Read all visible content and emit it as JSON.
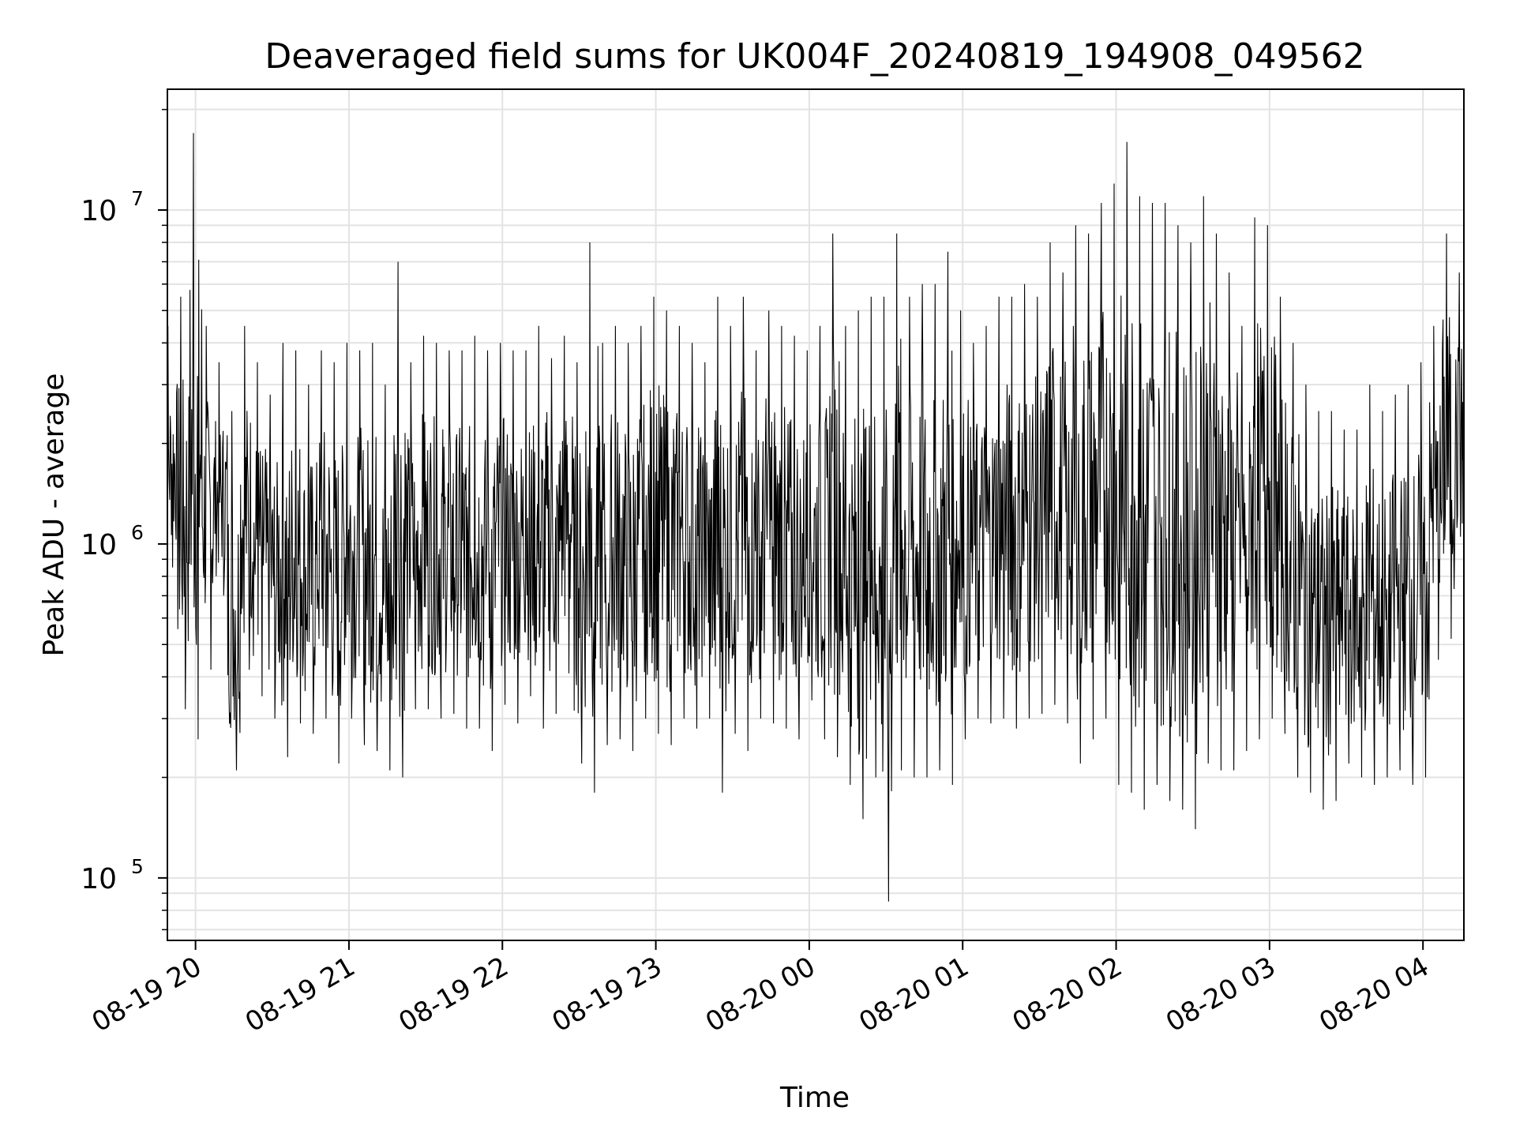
{
  "chart_data": {
    "type": "line",
    "title": "Deaveraged field sums for UK004F_20240819_194908_049562",
    "xlabel": "Time",
    "ylabel": "Peak ADU - average",
    "x_scale": "time",
    "y_scale": "log",
    "xlim": [
      "2024-08-19 19:49",
      "2024-08-20 04:16"
    ],
    "ylim": [
      65000,
      23000000
    ],
    "grid": true,
    "legend": "none",
    "line_color": "#000000",
    "x_ticks": [
      {
        "value": "2024-08-19 20:00",
        "label": "08-19 20"
      },
      {
        "value": "2024-08-19 21:00",
        "label": "08-19 21"
      },
      {
        "value": "2024-08-19 22:00",
        "label": "08-19 22"
      },
      {
        "value": "2024-08-19 23:00",
        "label": "08-19 23"
      },
      {
        "value": "2024-08-20 00:00",
        "label": "08-20 00"
      },
      {
        "value": "2024-08-20 01:00",
        "label": "08-20 01"
      },
      {
        "value": "2024-08-20 02:00",
        "label": "08-20 02"
      },
      {
        "value": "2024-08-20 03:00",
        "label": "08-20 03"
      },
      {
        "value": "2024-08-20 04:00",
        "label": "08-20 04"
      }
    ],
    "y_ticks": [
      {
        "value": 100000,
        "base": "10",
        "exp": "5"
      },
      {
        "value": 1000000,
        "base": "10",
        "exp": "6"
      },
      {
        "value": 10000000,
        "base": "10",
        "exp": "7"
      }
    ],
    "series": [
      {
        "x": [
          "2024-08-19 19:50",
          "2024-08-19 19:55",
          "2024-08-19 20:00",
          "2024-08-19 20:05",
          "2024-08-19 20:10",
          "2024-08-19 20:15",
          "2024-08-19 20:20",
          "2024-08-19 20:25",
          "2024-08-19 20:30",
          "2024-08-19 20:35",
          "2024-08-19 20:40",
          "2024-08-19 20:45",
          "2024-08-19 20:50",
          "2024-08-19 20:55",
          "2024-08-19 21:00",
          "2024-08-19 21:05",
          "2024-08-19 21:10",
          "2024-08-19 21:15",
          "2024-08-19 21:20",
          "2024-08-19 21:25",
          "2024-08-19 21:30",
          "2024-08-19 21:35",
          "2024-08-19 21:40",
          "2024-08-19 21:45",
          "2024-08-19 21:50",
          "2024-08-19 21:55",
          "2024-08-19 22:00",
          "2024-08-19 22:05",
          "2024-08-19 22:10",
          "2024-08-19 22:15",
          "2024-08-19 22:20",
          "2024-08-19 22:25",
          "2024-08-19 22:30",
          "2024-08-19 22:35",
          "2024-08-19 22:40",
          "2024-08-19 22:45",
          "2024-08-19 22:50",
          "2024-08-19 22:55",
          "2024-08-19 23:00",
          "2024-08-19 23:05",
          "2024-08-19 23:10",
          "2024-08-19 23:15",
          "2024-08-19 23:20",
          "2024-08-19 23:25",
          "2024-08-19 23:30",
          "2024-08-19 23:35",
          "2024-08-19 23:40",
          "2024-08-19 23:45",
          "2024-08-19 23:50",
          "2024-08-19 23:55",
          "2024-08-20 00:00",
          "2024-08-20 00:05",
          "2024-08-20 00:10",
          "2024-08-20 00:15",
          "2024-08-20 00:20",
          "2024-08-20 00:25",
          "2024-08-20 00:30",
          "2024-08-20 00:35",
          "2024-08-20 00:40",
          "2024-08-20 00:45",
          "2024-08-20 00:50",
          "2024-08-20 00:55",
          "2024-08-20 01:00",
          "2024-08-20 01:05",
          "2024-08-20 01:10",
          "2024-08-20 01:15",
          "2024-08-20 01:20",
          "2024-08-20 01:25",
          "2024-08-20 01:30",
          "2024-08-20 01:35",
          "2024-08-20 01:40",
          "2024-08-20 01:45",
          "2024-08-20 01:50",
          "2024-08-20 01:55",
          "2024-08-20 02:00",
          "2024-08-20 02:05",
          "2024-08-20 02:10",
          "2024-08-20 02:15",
          "2024-08-20 02:20",
          "2024-08-20 02:25",
          "2024-08-20 02:30",
          "2024-08-20 02:35",
          "2024-08-20 02:40",
          "2024-08-20 02:45",
          "2024-08-20 02:50",
          "2024-08-20 02:55",
          "2024-08-20 03:00",
          "2024-08-20 03:05",
          "2024-08-20 03:10",
          "2024-08-20 03:15",
          "2024-08-20 03:20",
          "2024-08-20 03:25",
          "2024-08-20 03:30",
          "2024-08-20 03:35",
          "2024-08-20 03:40",
          "2024-08-20 03:45",
          "2024-08-20 03:50",
          "2024-08-20 03:55",
          "2024-08-20 04:00",
          "2024-08-20 04:05",
          "2024-08-20 04:10",
          "2024-08-20 04:15"
        ],
        "y_high": [
          4500000,
          5500000,
          17000000,
          4500000,
          3500000,
          2500000,
          4500000,
          3500000,
          2800000,
          4000000,
          3800000,
          3000000,
          3800000,
          3500000,
          4000000,
          3800000,
          4000000,
          3000000,
          7000000,
          3500000,
          4200000,
          4000000,
          3800000,
          3800000,
          4200000,
          3800000,
          4000000,
          3800000,
          3800000,
          4500000,
          3600000,
          4200000,
          3500000,
          8000000,
          4000000,
          4500000,
          4000000,
          4500000,
          5500000,
          5000000,
          4500000,
          4000000,
          3500000,
          5500000,
          4500000,
          5500000,
          3800000,
          5000000,
          4500000,
          4200000,
          3800000,
          4500000,
          8500000,
          4500000,
          5000000,
          5500000,
          5500000,
          8500000,
          5500000,
          6000000,
          6000000,
          7500000,
          5000000,
          4000000,
          4500000,
          5500000,
          5500000,
          6000000,
          5500000,
          8000000,
          6500000,
          9000000,
          8500000,
          10500000,
          12000000,
          16000000,
          11000000,
          10500000,
          10500000,
          9000000,
          8000000,
          11000000,
          8500000,
          6500000,
          4500000,
          9500000,
          9000000,
          5500000,
          4000000,
          3000000,
          2500000,
          2500000,
          2200000,
          2200000,
          3000000,
          2500000,
          2800000,
          3000000,
          3500000,
          4500000,
          8500000,
          6500000
        ],
        "y_low": [
          850000,
          320000,
          260000,
          420000,
          700000,
          210000,
          420000,
          350000,
          300000,
          230000,
          290000,
          270000,
          300000,
          220000,
          300000,
          250000,
          240000,
          210000,
          200000,
          320000,
          320000,
          300000,
          310000,
          280000,
          280000,
          240000,
          330000,
          290000,
          350000,
          280000,
          310000,
          410000,
          220000,
          180000,
          250000,
          260000,
          240000,
          300000,
          270000,
          250000,
          300000,
          280000,
          300000,
          180000,
          270000,
          240000,
          300000,
          290000,
          280000,
          260000,
          340000,
          260000,
          230000,
          190000,
          150000,
          200000,
          85000,
          210000,
          200000,
          200000,
          210000,
          190000,
          260000,
          300000,
          290000,
          300000,
          280000,
          300000,
          310000,
          330000,
          290000,
          220000,
          260000,
          300000,
          190000,
          180000,
          160000,
          190000,
          170000,
          160000,
          140000,
          220000,
          210000,
          210000,
          240000,
          260000,
          300000,
          270000,
          200000,
          180000,
          160000,
          170000,
          220000,
          200000,
          190000,
          200000,
          210000,
          190000,
          200000,
          450000,
          520000,
          750000
        ]
      }
    ],
    "annotations": [
      {
        "x": "2024-08-19 20:03",
        "y": 17000000,
        "text": ""
      }
    ]
  }
}
